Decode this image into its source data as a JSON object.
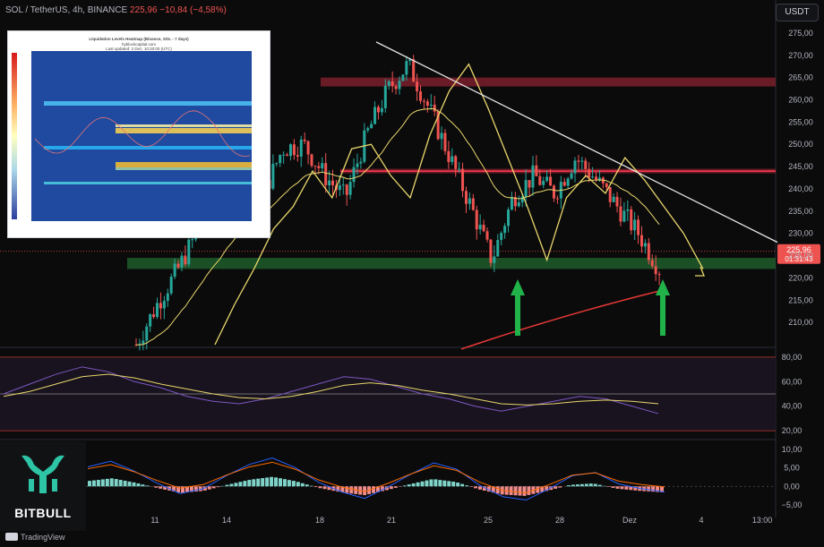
{
  "header": {
    "symbol": "SOL / TetherUS, 4h, BINANCE",
    "price": "225,96",
    "change": "−10,84 (−4,58%)",
    "currency_button": "USDT"
  },
  "footer": {
    "brand": "TradingView"
  },
  "watermark": {
    "name": "BITBULL"
  },
  "price_labels": {
    "last": "225,96",
    "countdown": "01:31:43"
  },
  "inset": {
    "title": "Liquidation Levels Heatmap (Binance, SOL - 7 days)",
    "subtitle": "hyblockcapital.com",
    "updated": "Last updated: 2 Dez, 10:20:00 (UTC)"
  },
  "colors": {
    "up": "#26a69a",
    "down": "#ef5350",
    "resistance_zone": "#7a1f2b",
    "support_zone": "#1e5c2a",
    "yellow": "#e9d66b",
    "ema_red": "#e53935",
    "arrow_green": "#21b34a",
    "white_line": "#e6e6e6",
    "rsi": "#7e57c2",
    "macd": "#2962ff",
    "signal": "#ff6d00"
  },
  "chart_data": [
    {
      "type": "candlestick",
      "pane": "price",
      "x_tick_labels": [
        "11",
        "14",
        "18",
        "21",
        "25",
        "28",
        "Dez",
        "4",
        "13:00"
      ],
      "y_ticks": [
        "210,00",
        "215,00",
        "220,00",
        "225,00",
        "230,00",
        "235,00",
        "240,00",
        "245,00",
        "250,00",
        "255,00",
        "260,00",
        "265,00",
        "270,00",
        "275,00"
      ],
      "ylim": [
        205,
        278
      ],
      "last_price": 225.96,
      "swing_path": [
        205,
        214,
        222,
        231,
        236,
        244,
        238,
        249,
        250,
        243,
        238,
        252,
        262,
        268,
        258,
        247,
        236,
        224,
        238,
        243,
        239,
        247,
        242,
        236,
        230,
        222
      ],
      "zones": [
        {
          "label": "resistance",
          "low": 263,
          "high": 265
        },
        {
          "label": "resistance",
          "low": 243.5,
          "high": 244.5
        },
        {
          "label": "support",
          "low": 222,
          "high": 224.5
        }
      ],
      "trendline": {
        "from": 273,
        "to": 228
      },
      "support_arrows": 2
    },
    {
      "type": "line",
      "pane": "rsi",
      "y_ticks": [
        "20,00",
        "40,00",
        "60,00",
        "80,00"
      ],
      "ylim": [
        15,
        85
      ],
      "bands": [
        20,
        50,
        80
      ],
      "series": [
        {
          "values": [
            50,
            58,
            66,
            72,
            68,
            60,
            55,
            48,
            44,
            42,
            46,
            52,
            58,
            64,
            62,
            56,
            50,
            46,
            40,
            36,
            40,
            44,
            48,
            46,
            40,
            34
          ]
        },
        {
          "values": [
            48,
            52,
            58,
            64,
            66,
            63,
            58,
            54,
            50,
            47,
            46,
            48,
            52,
            57,
            59,
            57,
            53,
            50,
            46,
            42,
            41,
            42,
            44,
            45,
            44,
            42
          ]
        }
      ]
    },
    {
      "type": "histogram",
      "pane": "macd",
      "y_ticks": [
        "−5,00",
        "0,00",
        "5,00",
        "10,00"
      ],
      "ylim": [
        -7,
        12
      ],
      "values": [
        1.5,
        2.2,
        1.0,
        -0.5,
        -1.8,
        -1.2,
        0.4,
        1.8,
        2.6,
        1.4,
        -0.4,
        -1.6,
        -2.4,
        -1.0,
        0.6,
        2.0,
        1.2,
        -0.8,
        -2.2,
        -2.6,
        -1.2,
        0.4,
        0.8,
        -0.6,
        -1.2,
        -1.6
      ]
    }
  ]
}
